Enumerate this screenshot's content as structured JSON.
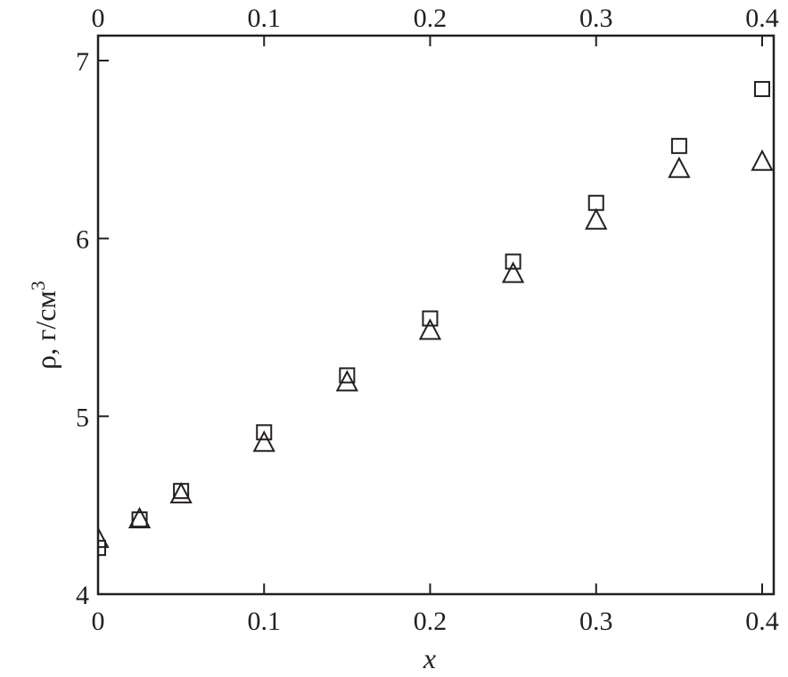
{
  "chart_data": {
    "type": "scatter",
    "title": "",
    "xlabel": "x",
    "ylabel": "ρ, г/см",
    "ylabel_superscript": "3",
    "xlim": [
      0,
      0.4
    ],
    "ylim": [
      4,
      7
    ],
    "x_ticks": [
      "0",
      "0.1",
      "0.2",
      "0.3",
      "0.4"
    ],
    "x_tick_values": [
      0,
      0.1,
      0.2,
      0.3,
      0.4
    ],
    "top_x_ticks": [
      "0",
      "0.1",
      "0.2",
      "0.3",
      "0.4"
    ],
    "y_ticks": [
      "4",
      "5",
      "6",
      "7"
    ],
    "y_tick_values": [
      4,
      5,
      6,
      7
    ],
    "grid": false,
    "color": "#231f20",
    "series": [
      {
        "marker": "square",
        "x": [
          0,
          0.025,
          0.05,
          0.1,
          0.15,
          0.2,
          0.25,
          0.3,
          0.35,
          0.4
        ],
        "y": [
          4.26,
          4.42,
          4.58,
          4.91,
          5.23,
          5.55,
          5.87,
          6.2,
          6.52,
          6.84
        ]
      },
      {
        "marker": "triangle",
        "x": [
          0,
          0.025,
          0.05,
          0.1,
          0.15,
          0.2,
          0.25,
          0.3,
          0.35,
          0.4
        ],
        "y": [
          4.31,
          4.42,
          4.56,
          4.85,
          5.19,
          5.48,
          5.8,
          6.1,
          6.39,
          6.43
        ]
      }
    ]
  }
}
